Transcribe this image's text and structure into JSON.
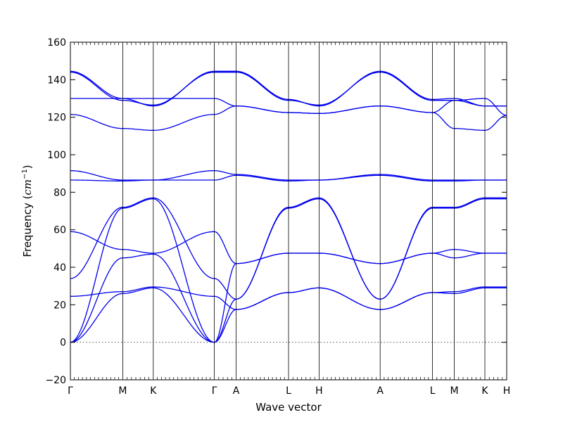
{
  "chart_data": {
    "type": "line",
    "xlabel": "Wave vector",
    "ylabel_main": "Frequency (",
    "ylabel_unit": "cm",
    "ylabel_exp": "−1",
    "ylabel_close": ")",
    "ylim": [
      -20,
      160
    ],
    "yticks": [
      -20,
      0,
      20,
      40,
      60,
      80,
      100,
      120,
      140,
      160
    ],
    "xlim": [
      0,
      14.7
    ],
    "symmetry_points": [
      {
        "label": "Γ",
        "x": 0
      },
      {
        "label": "M",
        "x": 1.8
      },
      {
        "label": "K",
        "x": 2.85
      },
      {
        "label": "Γ",
        "x": 4.95
      },
      {
        "label": "A",
        "x": 5.7
      },
      {
        "label": "L",
        "x": 7.5
      },
      {
        "label": "H",
        "x": 8.55
      },
      {
        "label": "A",
        "x": 10.65
      },
      {
        "label": "L",
        "x": 12.45
      },
      {
        "label": "M",
        "x": 13.2
      },
      {
        "label": "K",
        "x": 14.25
      },
      {
        "label": "H",
        "x": 15.0
      }
    ],
    "zero_line": true,
    "line_color": "#0000ee",
    "series": [
      {
        "x": [
          0,
          1.8,
          2.85,
          4.95,
          5.7,
          7.5,
          8.55,
          10.65,
          12.45,
          13.2,
          14.25,
          15.0
        ],
        "y": [
          144.5,
          130,
          126,
          144.5,
          144.5,
          129.5,
          126,
          144.5,
          129.5,
          130,
          126,
          126
        ]
      },
      {
        "x": [
          0,
          1.8,
          2.85,
          4.95,
          5.7,
          7.5,
          8.55,
          10.65,
          12.45,
          13.2,
          14.25,
          15.0
        ],
        "y": [
          144,
          129,
          126.5,
          144,
          144,
          129,
          126.5,
          144,
          129,
          129,
          126,
          126
        ]
      },
      {
        "x": [
          0,
          1.8,
          2.85,
          4.95,
          5.7,
          7.5,
          8.55,
          10.65,
          12.45,
          13.2,
          14.25,
          15.0
        ],
        "y": [
          130,
          130,
          130,
          130,
          126,
          122.5,
          122,
          126,
          122.5,
          129,
          130,
          121
        ]
      },
      {
        "x": [
          0,
          1.8,
          2.85,
          4.95,
          5.7,
          7.5,
          8.55,
          10.65,
          12.45,
          13.2,
          14.25,
          15.0
        ],
        "y": [
          121.5,
          114,
          113,
          121.5,
          126,
          122.5,
          122,
          126,
          122.5,
          114,
          113,
          121
        ]
      },
      {
        "x": [
          0,
          1.8,
          2.85,
          4.95,
          5.7,
          7.5,
          8.55,
          10.65,
          12.45,
          13.2,
          14.25,
          15.0
        ],
        "y": [
          91.5,
          86.5,
          86.5,
          91.5,
          89.5,
          86.5,
          86.5,
          89.5,
          86.5,
          86.5,
          86.5,
          86.5
        ]
      },
      {
        "x": [
          0,
          1.8,
          2.85,
          4.95,
          5.7,
          7.5,
          8.55,
          10.65,
          12.45,
          13.2,
          14.25,
          15.0
        ],
        "y": [
          86.5,
          86,
          86.5,
          86.5,
          89,
          86,
          86.5,
          89,
          86,
          86,
          86.5,
          86.5
        ]
      },
      {
        "x": [
          0,
          1.8,
          2.85,
          4.95,
          5.7,
          7.5,
          8.55,
          10.65,
          12.45,
          13.2,
          14.25,
          15.0
        ],
        "y": [
          34,
          72,
          77,
          34,
          23,
          72,
          77,
          23,
          72,
          72,
          77,
          77
        ]
      },
      {
        "x": [
          0,
          1.8,
          2.85,
          4.95,
          5.7,
          7.5,
          8.55,
          10.65,
          12.45,
          13.2,
          14.25,
          15.0
        ],
        "y": [
          0,
          71.5,
          76.5,
          0,
          23,
          71.5,
          76.5,
          23,
          71.5,
          71.5,
          76.5,
          76.5
        ]
      },
      {
        "x": [
          0,
          1.8,
          2.85,
          4.95,
          5.7,
          7.5,
          8.55,
          10.65,
          12.45,
          13.2,
          14.25,
          15.0
        ],
        "y": [
          59,
          49.5,
          47.5,
          59,
          42,
          47.5,
          47.5,
          42,
          47.5,
          49.5,
          47.5,
          47.5
        ]
      },
      {
        "x": [
          0,
          1.8,
          2.85,
          4.95,
          5.7,
          7.5,
          8.55,
          10.65,
          12.45,
          13.2,
          14.25,
          15.0
        ],
        "y": [
          0,
          45,
          47,
          0,
          42,
          47.5,
          47.5,
          42,
          47.5,
          45,
          47.5,
          47.5
        ]
      },
      {
        "x": [
          0,
          1.8,
          2.85,
          4.95,
          5.7,
          7.5,
          8.55,
          10.65,
          12.45,
          13.2,
          14.25,
          15.0
        ],
        "y": [
          24.5,
          27,
          29.5,
          24.5,
          17.5,
          26.5,
          29,
          17.5,
          26.5,
          27,
          29.5,
          29.5
        ]
      },
      {
        "x": [
          0,
          1.8,
          2.85,
          4.95,
          5.7,
          7.5,
          8.55,
          10.65,
          12.45,
          13.2,
          14.25,
          15.0
        ],
        "y": [
          0,
          26,
          29,
          0,
          17.5,
          26.5,
          29,
          17.5,
          26.5,
          26,
          29,
          29
        ]
      }
    ]
  }
}
